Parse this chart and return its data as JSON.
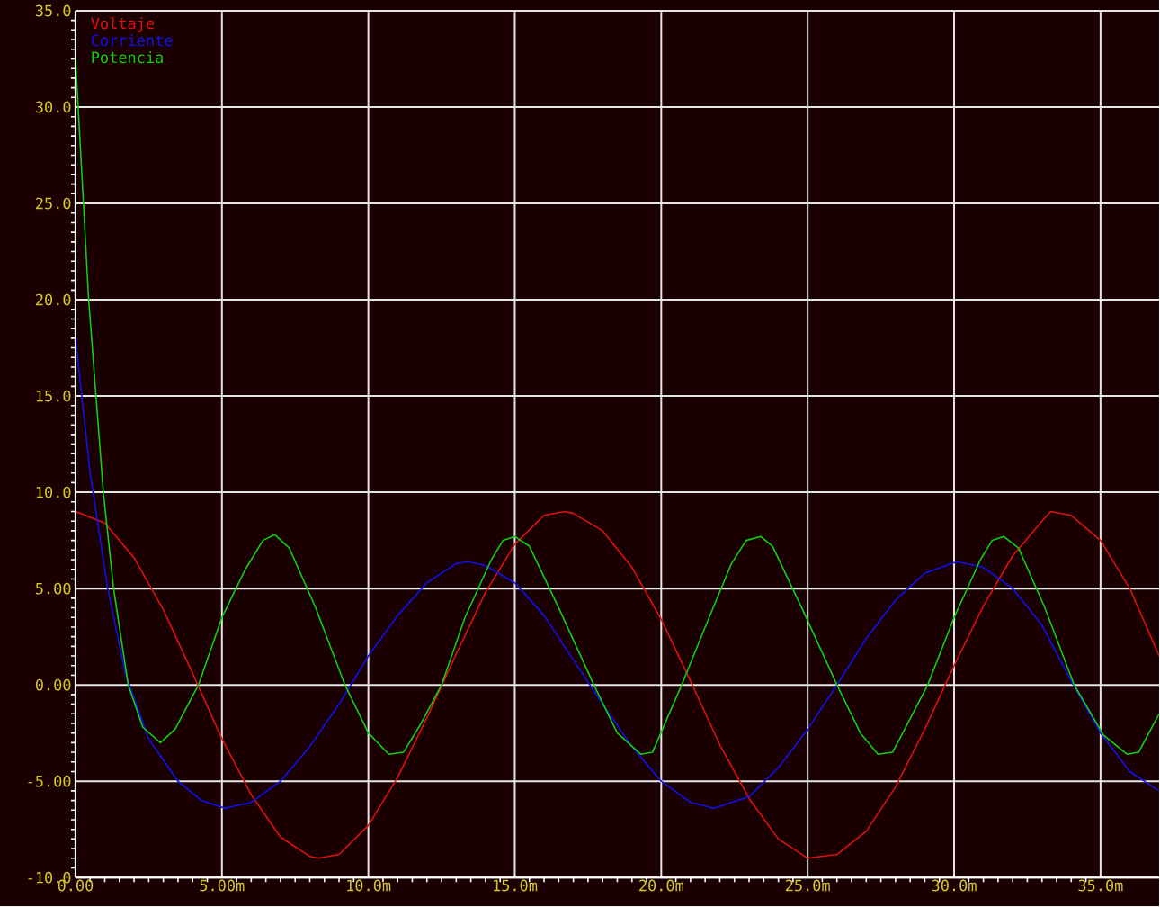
{
  "chart_data": {
    "type": "line",
    "xlim": [
      0,
      37
    ],
    "ylim": [
      -10,
      35
    ],
    "xticks": [
      {
        "value": 0,
        "label": "0.00"
      },
      {
        "value": 5,
        "label": "5.00m"
      },
      {
        "value": 10,
        "label": "10.0m"
      },
      {
        "value": 15,
        "label": "15.0m"
      },
      {
        "value": 20,
        "label": "20.0m"
      },
      {
        "value": 25,
        "label": "25.0m"
      },
      {
        "value": 30,
        "label": "30.0m"
      },
      {
        "value": 35,
        "label": "35.0m"
      }
    ],
    "yticks": [
      {
        "value": -10,
        "label": "-10.0"
      },
      {
        "value": -5,
        "label": "-5.00"
      },
      {
        "value": 0,
        "label": "0.00"
      },
      {
        "value": 5,
        "label": "5.00"
      },
      {
        "value": 10,
        "label": "10.0"
      },
      {
        "value": 15,
        "label": "15.0"
      },
      {
        "value": 20,
        "label": "20.0"
      },
      {
        "value": 25,
        "label": "25.0"
      },
      {
        "value": 30,
        "label": "30.0"
      },
      {
        "value": 35,
        "label": "35.0"
      }
    ],
    "grid": true,
    "legend": "top left",
    "marker": "none",
    "line_style": "solid",
    "series": [
      {
        "name": "Voltaje",
        "color": "#e01010",
        "x": [
          0,
          1,
          2,
          3,
          4,
          5,
          6,
          7,
          8,
          8.3,
          9,
          10,
          11,
          12,
          13,
          14,
          15,
          16,
          16.7,
          17,
          18,
          19,
          20,
          21,
          22,
          23,
          24,
          25,
          26,
          27,
          28,
          29,
          30,
          31,
          32,
          33,
          33.3,
          34,
          35,
          36,
          37
        ],
        "values": [
          9.0,
          8.4,
          6.6,
          3.9,
          0.6,
          -2.8,
          -5.7,
          -7.9,
          -8.9,
          -9.0,
          -8.8,
          -7.3,
          -4.8,
          -1.7,
          1.6,
          4.8,
          7.3,
          8.8,
          9.0,
          8.9,
          8.0,
          6.1,
          3.4,
          0.2,
          -3.1,
          -5.9,
          -8.0,
          -9.0,
          -8.8,
          -7.6,
          -5.3,
          -2.3,
          1.0,
          4.1,
          6.7,
          8.5,
          9.0,
          8.8,
          7.5,
          5.0,
          1.5
        ]
      },
      {
        "name": "Corriente",
        "color": "#1010f0",
        "x": [
          0,
          0.5,
          1.1,
          1.7,
          2.5,
          3.5,
          4.3,
          5.1,
          6,
          7,
          8,
          9,
          10,
          11,
          12,
          13,
          13.4,
          14,
          15,
          16,
          17,
          18,
          19,
          20,
          21,
          21.8,
          23,
          24,
          25,
          26,
          27,
          28,
          29,
          30.1,
          31,
          32,
          33,
          34,
          35,
          36,
          37
        ],
        "values": [
          18,
          11,
          5,
          0.6,
          -2.8,
          -5.0,
          -6.0,
          -6.4,
          -6.1,
          -5.0,
          -3.2,
          -1.0,
          1.5,
          3.6,
          5.3,
          6.3,
          6.4,
          6.2,
          5.3,
          3.6,
          1.3,
          -1.0,
          -3.2,
          -5.0,
          -6.1,
          -6.4,
          -5.8,
          -4.3,
          -2.3,
          0,
          2.4,
          4.4,
          5.8,
          6.4,
          6.1,
          5.0,
          3.1,
          0.2,
          -2.5,
          -4.5,
          -5.5
        ]
      },
      {
        "name": "Potencia",
        "color": "#10d010",
        "x": [
          0,
          0.2,
          0.45,
          0.7,
          0.95,
          1.3,
          1.8,
          2.3,
          2.9,
          3.4,
          4.2,
          5.0,
          5.8,
          6.4,
          6.8,
          7.3,
          8.2,
          9.2,
          10.0,
          10.7,
          11.2,
          11.8,
          12.5,
          13.3,
          14.2,
          14.6,
          15.0,
          15.5,
          16.5,
          17.7,
          18.5,
          19.3,
          19.7,
          20.7,
          21.5,
          22.4,
          22.9,
          23.4,
          23.8,
          24.8,
          26.0,
          26.8,
          27.4,
          27.9,
          29.1,
          30,
          30.9,
          31.3,
          31.7,
          32.2,
          33.1,
          34.1,
          35.1,
          35.9,
          36.3,
          37
        ],
        "values": [
          32.5,
          27,
          20,
          15,
          10,
          5,
          0,
          -2.2,
          -3.0,
          -2.3,
          0,
          3.5,
          6.0,
          7.5,
          7.8,
          7.1,
          4.0,
          0,
          -2.5,
          -3.6,
          -3.5,
          -2.0,
          0,
          3.5,
          6.5,
          7.5,
          7.7,
          7.2,
          4.0,
          0,
          -2.5,
          -3.6,
          -3.5,
          0,
          3.0,
          6.3,
          7.5,
          7.7,
          7.2,
          4.0,
          0,
          -2.5,
          -3.6,
          -3.5,
          0,
          3.5,
          6.5,
          7.5,
          7.7,
          7.1,
          4.0,
          0,
          -2.6,
          -3.6,
          -3.5,
          -1.5
        ]
      }
    ]
  }
}
